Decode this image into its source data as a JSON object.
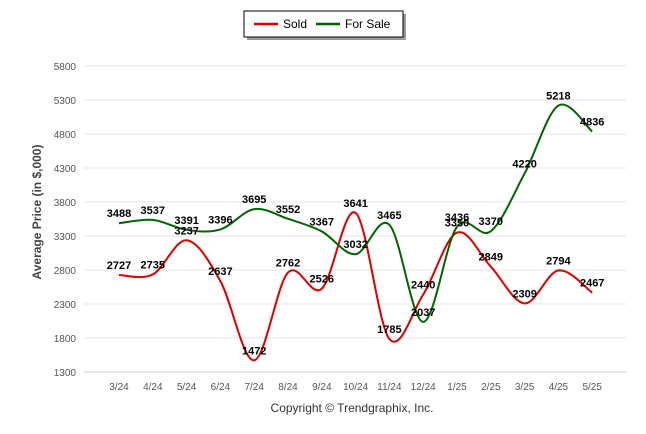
{
  "chart_data": {
    "type": "line",
    "categories": [
      "3/24",
      "4/24",
      "5/24",
      "6/24",
      "7/24",
      "8/24",
      "9/24",
      "10/24",
      "11/24",
      "12/24",
      "1/25",
      "2/25",
      "3/25",
      "4/25",
      "5/25"
    ],
    "series": [
      {
        "name": "Sold",
        "color": "#dd0000",
        "values": [
          2727,
          2735,
          3237,
          2637,
          1472,
          2762,
          2526,
          3641,
          1785,
          2440,
          3350,
          2849,
          2309,
          2794,
          2467
        ]
      },
      {
        "name": "For Sale",
        "color": "#006400",
        "values": [
          3488,
          3537,
          3391,
          3396,
          3695,
          3552,
          3367,
          3032,
          3465,
          2037,
          3436,
          3370,
          4220,
          5218,
          4836
        ]
      }
    ],
    "ylabel": "Average Price (in $,000)",
    "xlabel": "",
    "ylim": [
      1300,
      5800
    ],
    "yticks": [
      1300,
      1800,
      2300,
      2800,
      3300,
      3800,
      4300,
      4800,
      5300,
      5800
    ],
    "grid": true,
    "legend": "top-center",
    "credit": "Copyright © Trendgraphix, Inc."
  }
}
